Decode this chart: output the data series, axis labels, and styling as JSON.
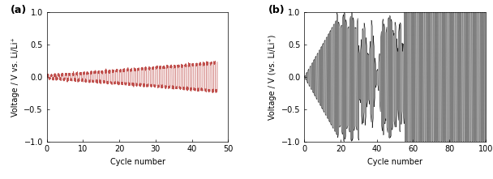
{
  "panel_a": {
    "label": "(a)",
    "xlabel": "Cycle number",
    "ylabel": "Voltage / V vs. Li/Li⁺",
    "xlim": [
      0,
      50
    ],
    "ylim": [
      -1.0,
      1.0
    ],
    "xticks": [
      0,
      10,
      20,
      30,
      40,
      50
    ],
    "yticks": [
      -1.0,
      -0.5,
      0.0,
      0.5,
      1.0
    ],
    "line_color": "#c0504d",
    "background": "#ffffff"
  },
  "panel_b": {
    "label": "(b)",
    "xlabel": "Cycle number",
    "ylabel": "Voltage / V (vs. Li/Li⁺)",
    "xlim": [
      0,
      100
    ],
    "ylim": [
      -1.0,
      1.0
    ],
    "xticks": [
      0,
      20,
      40,
      60,
      80,
      100
    ],
    "yticks": [
      -1.0,
      -0.5,
      0.0,
      0.5,
      1.0
    ],
    "line_color": "#1a1a1a",
    "background": "#ffffff"
  },
  "fig_width": 6.08,
  "fig_height": 2.21,
  "dpi": 100,
  "label_fontsize": 9,
  "tick_fontsize": 7,
  "axis_label_fontsize": 7,
  "linewidth_a": 0.5,
  "linewidth_b": 0.4
}
